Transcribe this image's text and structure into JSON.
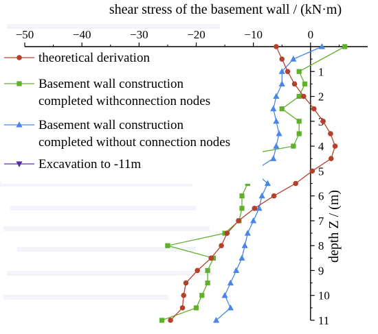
{
  "chart_data": {
    "type": "line",
    "title": "",
    "xlabel": "shear stress of the basement wall / (kN·m)",
    "ylabel": "depth Z / (m)",
    "xlim": [
      -50,
      10
    ],
    "ylim": [
      -11,
      0
    ],
    "x_ticks": [
      -50,
      -40,
      -30,
      -20,
      -10,
      0
    ],
    "x_tick_labels": [
      "−50",
      "−40",
      "−30",
      "−20",
      "−10",
      "0"
    ],
    "y_ticks": [
      -1,
      -2,
      -3,
      -4,
      -5,
      -6,
      -7,
      -8,
      -9,
      -10,
      -11
    ],
    "y_tick_labels": [
      "1",
      "2",
      "3",
      "4",
      "5",
      "6",
      "7",
      "8",
      "9",
      "10",
      "11"
    ],
    "x_axis_position": "top",
    "y_axis_position": "zero",
    "grid": false,
    "legend_position": "top-left",
    "series": [
      {
        "name": "theoretical derivation",
        "color": "#b5402a",
        "marker": "circle",
        "points": [
          {
            "x": -6.0,
            "y": 0
          },
          {
            "x": -5.0,
            "y": -0.5
          },
          {
            "x": -4.0,
            "y": -1.0
          },
          {
            "x": -2.8,
            "y": -1.5
          },
          {
            "x": -1.2,
            "y": -2.0
          },
          {
            "x": 0.6,
            "y": -2.5
          },
          {
            "x": 2.2,
            "y": -3.0
          },
          {
            "x": 3.5,
            "y": -3.5
          },
          {
            "x": 4.3,
            "y": -4.0
          },
          {
            "x": 3.6,
            "y": -4.5
          },
          {
            "x": 0.3,
            "y": -5.0
          },
          {
            "x": -2.6,
            "y": -5.5
          },
          {
            "x": -6.4,
            "y": -6.0
          },
          {
            "x": -9.8,
            "y": -6.5
          },
          {
            "x": -12.6,
            "y": -7.0
          },
          {
            "x": -14.6,
            "y": -7.5
          },
          {
            "x": -15.6,
            "y": -8.0
          },
          {
            "x": -17.4,
            "y": -8.5
          },
          {
            "x": -19.8,
            "y": -9.0
          },
          {
            "x": -21.8,
            "y": -9.5
          },
          {
            "x": -22.2,
            "y": -10.0
          },
          {
            "x": -22.4,
            "y": -10.5
          },
          {
            "x": -24.5,
            "y": -11.0
          }
        ]
      },
      {
        "name": "Basement wall construction completed withconnection nodes",
        "color": "#5fb02a",
        "marker": "square",
        "points": [
          {
            "x": 6.0,
            "y": 0
          },
          {
            "x": -2.0,
            "y": -1.0
          },
          {
            "x": -1.0,
            "y": -1.5
          },
          {
            "x": -2.0,
            "y": -2.0
          },
          {
            "x": -5.0,
            "y": -2.5
          },
          {
            "x": -2.0,
            "y": -3.0
          },
          {
            "x": -2.0,
            "y": -3.5
          },
          {
            "x": -3.0,
            "y": -4.0
          },
          {
            "x": -15.0,
            "y": -4.5
          },
          {
            "x": -10.0,
            "y": -5.0
          },
          {
            "x": -11.0,
            "y": -5.5
          },
          {
            "x": -12.0,
            "y": -6.0
          },
          {
            "x": -12.0,
            "y": -6.5
          },
          {
            "x": -12.5,
            "y": -7.0
          },
          {
            "x": -15.0,
            "y": -7.5
          },
          {
            "x": -25.0,
            "y": -8.0
          },
          {
            "x": -17.0,
            "y": -8.5
          },
          {
            "x": -18.0,
            "y": -9.0
          },
          {
            "x": -18.0,
            "y": -9.5
          },
          {
            "x": -19.0,
            "y": -10.0
          },
          {
            "x": -20.0,
            "y": -10.5
          },
          {
            "x": -26.0,
            "y": -11.0
          }
        ]
      },
      {
        "name": "Basement wall construction completed without connection nodes",
        "color": "#4a86e8",
        "marker": "triangle-up",
        "points": [
          {
            "x": 2.0,
            "y": 0
          },
          {
            "x": -3.0,
            "y": -0.5
          },
          {
            "x": -5.0,
            "y": -1.0
          },
          {
            "x": -5.0,
            "y": -1.5
          },
          {
            "x": -6.0,
            "y": -2.0
          },
          {
            "x": -6.5,
            "y": -2.5
          },
          {
            "x": -6.0,
            "y": -3.0
          },
          {
            "x": -5.5,
            "y": -3.5
          },
          {
            "x": -6.0,
            "y": -4.0
          },
          {
            "x": -6.5,
            "y": -4.5
          },
          {
            "x": -10.0,
            "y": -5.0
          },
          {
            "x": -7.5,
            "y": -5.5
          },
          {
            "x": -8.5,
            "y": -6.0
          },
          {
            "x": -9.0,
            "y": -6.5
          },
          {
            "x": -10.0,
            "y": -7.0
          },
          {
            "x": -11.0,
            "y": -7.5
          },
          {
            "x": -11.5,
            "y": -8.0
          },
          {
            "x": -12.0,
            "y": -8.5
          },
          {
            "x": -13.0,
            "y": -9.0
          },
          {
            "x": -14.0,
            "y": -9.5
          },
          {
            "x": -15.0,
            "y": -10.0
          },
          {
            "x": -14.0,
            "y": -10.5
          },
          {
            "x": -16.5,
            "y": -11.0
          }
        ]
      },
      {
        "name": "Excavation to -11m",
        "color": "#5a2ca8",
        "marker": "triangle-down",
        "points": []
      }
    ]
  }
}
